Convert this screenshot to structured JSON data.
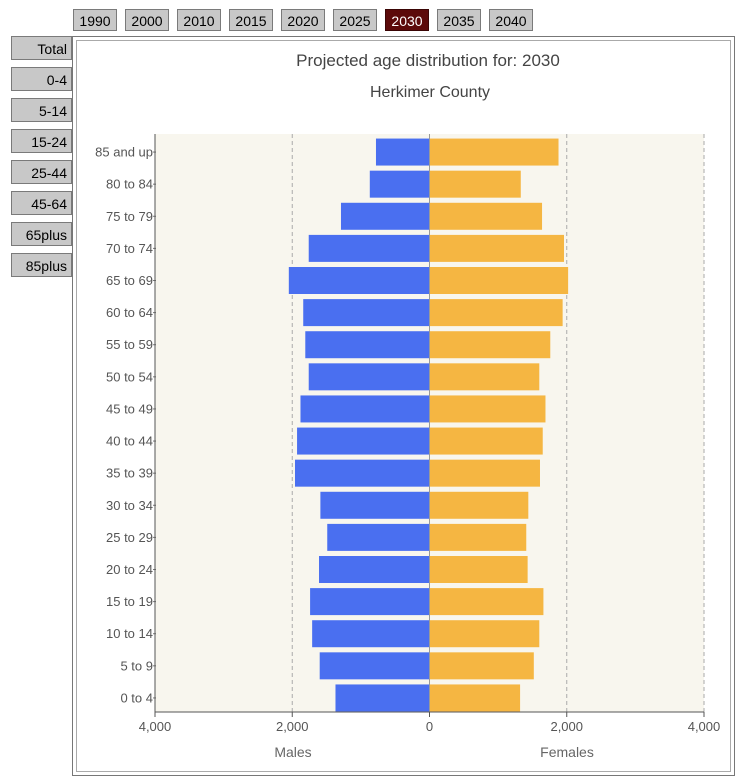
{
  "years": [
    "1990",
    "2000",
    "2010",
    "2015",
    "2020",
    "2025",
    "2030",
    "2035",
    "2040"
  ],
  "active_year": "2030",
  "categories": [
    "Total",
    "0-4",
    "5-14",
    "15-24",
    "25-44",
    "45-64",
    "65plus",
    "85plus"
  ],
  "colors": {
    "males": "#4a6ff0",
    "females": "#f5b642",
    "plot_bg": "#f8f6ee",
    "active_button": "#5c0a0a"
  },
  "chart_data": {
    "type": "bar",
    "orientation": "horizontal",
    "title": "Projected age distribution for: 2030",
    "subtitle": "Herkimer County",
    "categories": [
      "85 and up",
      "80 to 84",
      "75 to 79",
      "70 to 74",
      "65 to 69",
      "60 to 64",
      "55 to 59",
      "50 to 54",
      "45 to 49",
      "40 to 44",
      "35 to 39",
      "30 to 34",
      "25 to 29",
      "20 to 24",
      "15 to 19",
      "10 to 14",
      "5 to 9",
      "0 to 4"
    ],
    "series": [
      {
        "name": "Males",
        "values": [
          780,
          870,
          1290,
          1760,
          2050,
          1840,
          1810,
          1760,
          1880,
          1930,
          1960,
          1590,
          1490,
          1610,
          1740,
          1710,
          1600,
          1370
        ]
      },
      {
        "name": "Females",
        "values": [
          1880,
          1330,
          1640,
          1960,
          2020,
          1940,
          1760,
          1600,
          1690,
          1650,
          1610,
          1440,
          1410,
          1430,
          1660,
          1600,
          1520,
          1320
        ]
      }
    ],
    "xlim": [
      -4000,
      4000
    ],
    "x_ticks": [
      "4,000",
      "2,000",
      "0",
      "2,000",
      "4,000"
    ],
    "xlabel_left": "Males",
    "xlabel_right": "Females",
    "grid": "dashed vertical at ±2,000 and ±4,000"
  }
}
